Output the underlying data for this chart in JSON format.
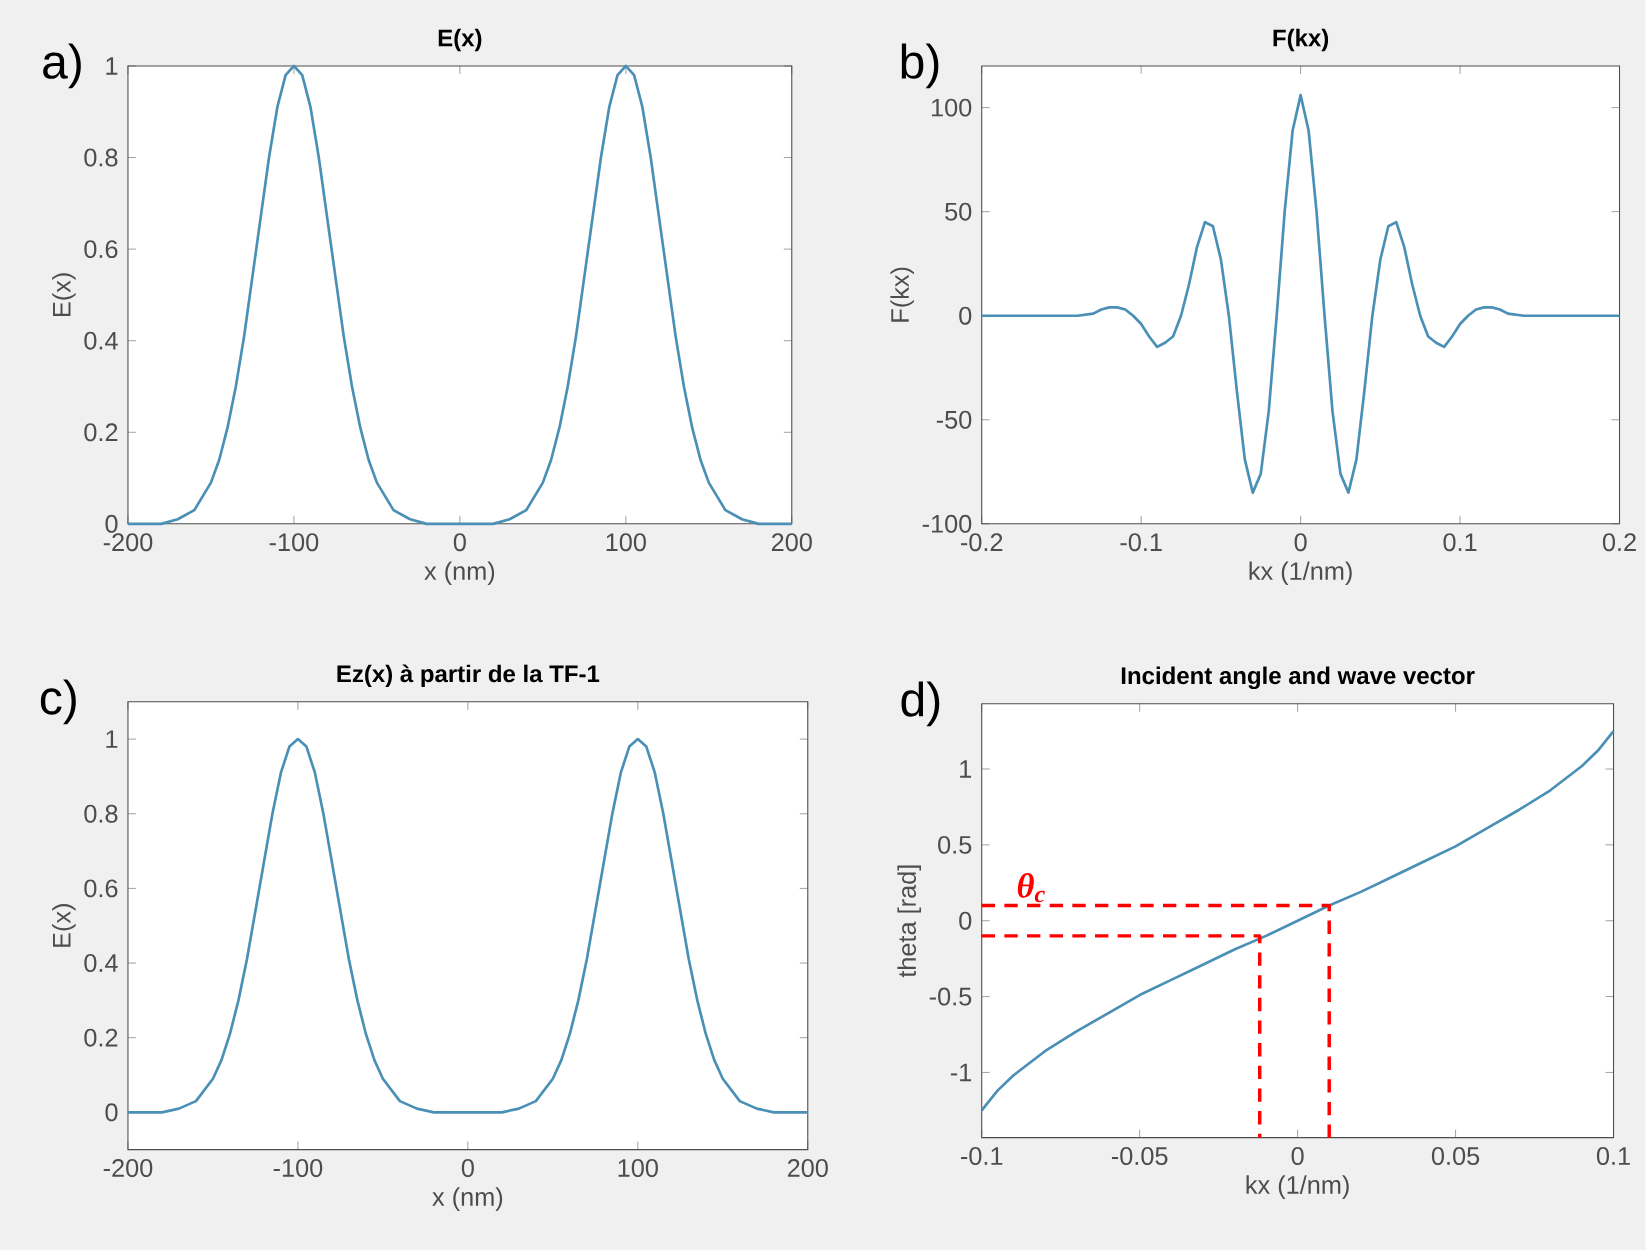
{
  "chart_data": [
    {
      "type": "line",
      "title": "E(x)",
      "xlabel": "x (nm)",
      "ylabel": "E(x)",
      "annotations": [
        "a)"
      ],
      "x": [
        -200,
        -190,
        -180,
        -170,
        -160,
        -150,
        -145,
        -140,
        -135,
        -130,
        -125,
        -120,
        -115,
        -110,
        -105,
        -100,
        -95,
        -90,
        -85,
        -80,
        -75,
        -70,
        -65,
        -60,
        -55,
        -50,
        -40,
        -30,
        -20,
        -10,
        0,
        10,
        20,
        30,
        40,
        50,
        55,
        60,
        65,
        70,
        75,
        80,
        85,
        90,
        95,
        100,
        105,
        110,
        115,
        120,
        125,
        130,
        135,
        140,
        145,
        150,
        160,
        170,
        180,
        190,
        200
      ],
      "series": [
        {
          "color": "#4a8fb5",
          "values": [
            0,
            0,
            0,
            0.01,
            0.03,
            0.09,
            0.14,
            0.21,
            0.3,
            0.41,
            0.54,
            0.67,
            0.8,
            0.91,
            0.98,
            1,
            0.98,
            0.91,
            0.8,
            0.67,
            0.54,
            0.41,
            0.3,
            0.21,
            0.14,
            0.09,
            0.03,
            0.01,
            0,
            0,
            0,
            0,
            0,
            0.01,
            0.03,
            0.09,
            0.14,
            0.21,
            0.3,
            0.41,
            0.54,
            0.67,
            0.8,
            0.91,
            0.98,
            1,
            0.98,
            0.91,
            0.8,
            0.67,
            0.54,
            0.41,
            0.3,
            0.21,
            0.14,
            0.09,
            0.03,
            0.01,
            0,
            0,
            0
          ]
        }
      ],
      "xlim": [
        -200,
        200
      ],
      "ylim": [
        0,
        1
      ],
      "xticks": [
        -200,
        -100,
        0,
        100,
        200
      ],
      "yticks": [
        0,
        0.2,
        0.4,
        0.6,
        0.8,
        1
      ]
    },
    {
      "type": "line",
      "title": "F(kx)",
      "xlabel": "kx (1/nm)",
      "ylabel": "F(kx)",
      "annotations": [
        "b)"
      ],
      "x": [
        -0.2,
        -0.15,
        -0.14,
        -0.13,
        -0.125,
        -0.12,
        -0.115,
        -0.11,
        -0.105,
        -0.1,
        -0.095,
        -0.09,
        -0.085,
        -0.08,
        -0.075,
        -0.07,
        -0.065,
        -0.06,
        -0.055,
        -0.05,
        -0.045,
        -0.04,
        -0.035,
        -0.03,
        -0.025,
        -0.02,
        -0.015,
        -0.01,
        -0.005,
        0,
        0.005,
        0.01,
        0.015,
        0.02,
        0.025,
        0.03,
        0.035,
        0.04,
        0.045,
        0.05,
        0.055,
        0.06,
        0.065,
        0.07,
        0.075,
        0.08,
        0.085,
        0.09,
        0.095,
        0.1,
        0.105,
        0.11,
        0.115,
        0.12,
        0.125,
        0.13,
        0.14,
        0.15,
        0.2
      ],
      "series": [
        {
          "color": "#4a8fb5",
          "values": [
            0,
            0,
            0,
            1,
            3,
            4,
            4,
            3,
            0,
            -4,
            -10,
            -15,
            -13,
            -10,
            0,
            15,
            33,
            45,
            43,
            27,
            0,
            -36,
            -69,
            -85,
            -76,
            -46,
            0,
            50,
            89,
            106,
            89,
            50,
            0,
            -46,
            -76,
            -85,
            -69,
            -36,
            0,
            27,
            43,
            45,
            33,
            15,
            0,
            -10,
            -13,
            -15,
            -10,
            -4,
            0,
            3,
            4,
            4,
            3,
            1,
            0,
            0,
            0
          ]
        }
      ],
      "xlim": [
        -0.2,
        0.2
      ],
      "ylim": [
        -100,
        120
      ],
      "xticks": [
        -0.2,
        -0.1,
        0,
        0.1,
        0.2
      ],
      "yticks": [
        -100,
        -50,
        0,
        50,
        100
      ]
    },
    {
      "type": "line",
      "title": "Ez(x) à partir de la TF-1",
      "xlabel": "x (nm)",
      "ylabel": "E(x)",
      "annotations": [
        "c)"
      ],
      "x": [
        -200,
        -190,
        -180,
        -170,
        -160,
        -150,
        -145,
        -140,
        -135,
        -130,
        -125,
        -120,
        -115,
        -110,
        -105,
        -100,
        -95,
        -90,
        -85,
        -80,
        -75,
        -70,
        -65,
        -60,
        -55,
        -50,
        -40,
        -30,
        -20,
        -10,
        0,
        10,
        20,
        30,
        40,
        50,
        55,
        60,
        65,
        70,
        75,
        80,
        85,
        90,
        95,
        100,
        105,
        110,
        115,
        120,
        125,
        130,
        135,
        140,
        145,
        150,
        160,
        170,
        180,
        190,
        200
      ],
      "series": [
        {
          "color": "#4a8fb5",
          "values": [
            0,
            0,
            0,
            0.01,
            0.03,
            0.09,
            0.14,
            0.21,
            0.3,
            0.41,
            0.54,
            0.67,
            0.8,
            0.91,
            0.98,
            1,
            0.98,
            0.91,
            0.8,
            0.67,
            0.54,
            0.41,
            0.3,
            0.21,
            0.14,
            0.09,
            0.03,
            0.01,
            0,
            0,
            0,
            0,
            0,
            0.01,
            0.03,
            0.09,
            0.14,
            0.21,
            0.3,
            0.41,
            0.54,
            0.67,
            0.8,
            0.91,
            0.98,
            1,
            0.98,
            0.91,
            0.8,
            0.67,
            0.54,
            0.41,
            0.3,
            0.21,
            0.14,
            0.09,
            0.03,
            0.01,
            0,
            0,
            0
          ]
        }
      ],
      "xlim": [
        -200,
        200
      ],
      "ylim": [
        -0.1,
        1.1
      ],
      "xticks": [
        -200,
        -100,
        0,
        100,
        200
      ],
      "yticks": [
        0,
        0.2,
        0.4,
        0.6,
        0.8,
        1
      ]
    },
    {
      "type": "line",
      "title": "Incident angle and wave vector",
      "xlabel": "kx (1/nm)",
      "ylabel": "theta [rad]",
      "annotations": [
        "d)",
        {
          "text": "θ$_{c}$",
          "x": -0.09,
          "y": 0.1
        }
      ],
      "x": [
        -0.1,
        -0.095,
        -0.09,
        -0.08,
        -0.07,
        -0.06,
        -0.05,
        -0.04,
        -0.03,
        -0.02,
        -0.01,
        0,
        0.01,
        0.02,
        0.03,
        0.04,
        0.05,
        0.06,
        0.07,
        0.08,
        0.09,
        0.095,
        0.1
      ],
      "series": [
        {
          "color": "#4a8fb5",
          "values": [
            -1.25,
            -1.12,
            -1.02,
            -0.86,
            -0.73,
            -0.61,
            -0.49,
            -0.39,
            -0.29,
            -0.19,
            -0.1,
            0,
            0.1,
            0.19,
            0.29,
            0.39,
            0.49,
            0.61,
            0.73,
            0.86,
            1.02,
            1.12,
            1.25
          ]
        },
        {
          "color": "#ff0000",
          "line_style": "dashed",
          "x": [
            -0.1,
            0.01,
            0.01
          ],
          "values": [
            0.1,
            0.1,
            -1.43
          ]
        },
        {
          "color": "#ff0000",
          "line_style": "dashed",
          "x": [
            -0.1,
            -0.012,
            -0.012
          ],
          "values": [
            -0.1,
            -0.1,
            -1.43
          ]
        }
      ],
      "xlim": [
        -0.1,
        0.1
      ],
      "ylim": [
        -1.43,
        1.43
      ],
      "xticks": [
        -0.1,
        -0.05,
        0,
        0.05,
        0.1
      ],
      "yticks": [
        -1,
        -0.5,
        0,
        0.5,
        1
      ]
    }
  ]
}
